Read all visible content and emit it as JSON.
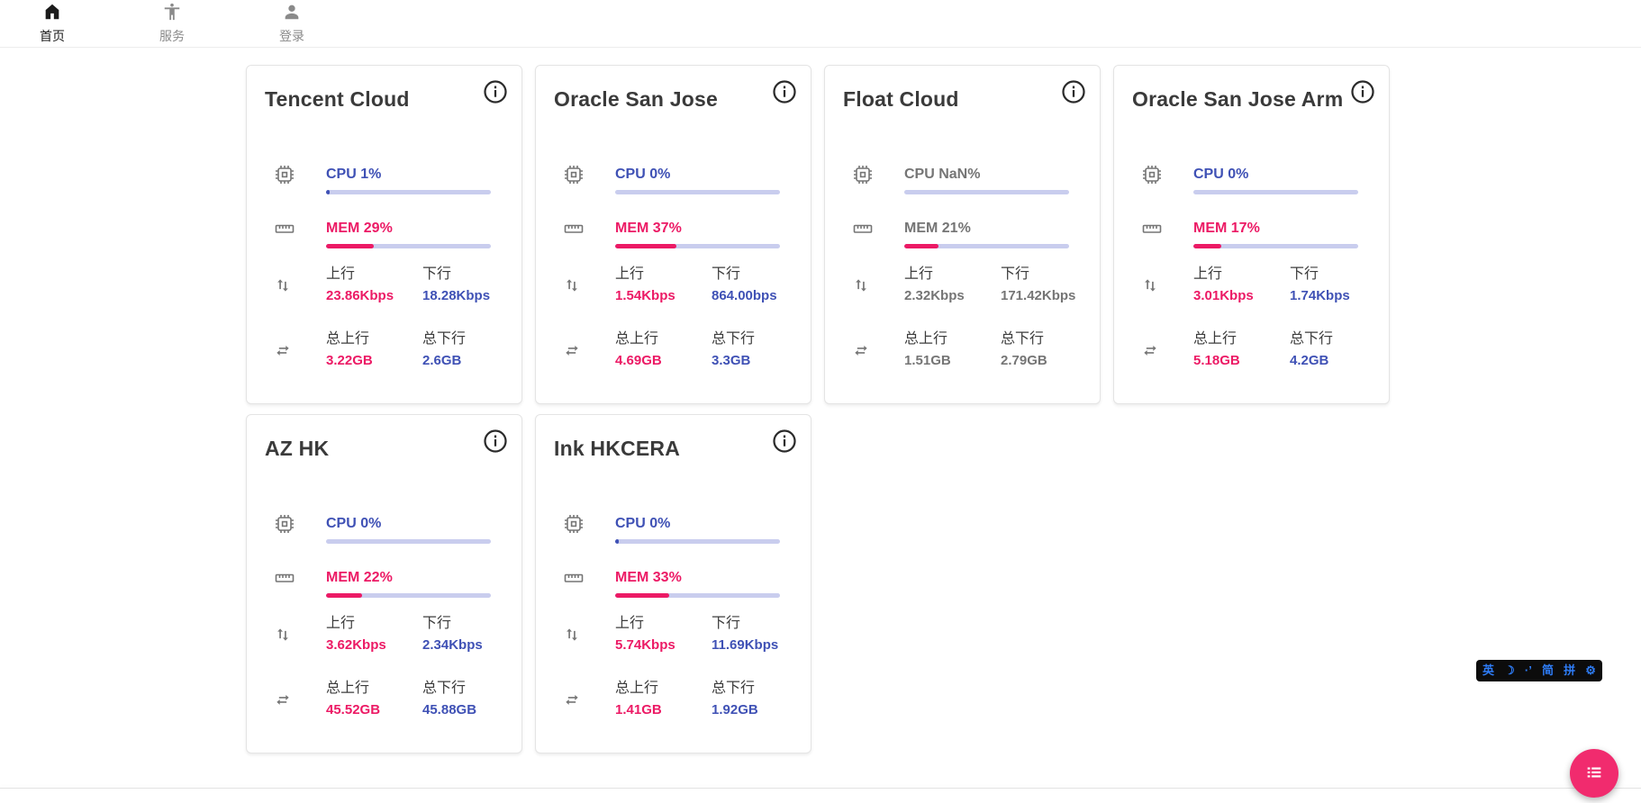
{
  "nav": {
    "home": "首页",
    "services": "服务",
    "login": "登录"
  },
  "labels": {
    "up": "上行",
    "down": "下行",
    "total_up": "总上行",
    "total_down": "总下行"
  },
  "colors": {
    "accent_blue": "#3f51b5",
    "accent_pink": "#ec1a65",
    "bar_track": "#c9cdee",
    "muted_gray": "#757575",
    "fab_pink": "#f12b6e",
    "ime_blue": "#2e7cf6"
  },
  "cards": [
    {
      "name": "Tencent Cloud",
      "cpu": "CPU 1%",
      "cpu_bar": 2,
      "mem": "MEM 29%",
      "mem_bar": 29,
      "up": "23.86Kbps",
      "down": "18.28Kbps",
      "total_up": "3.22GB",
      "total_down": "2.6GB",
      "muted": false
    },
    {
      "name": "Oracle San Jose",
      "cpu": "CPU 0%",
      "cpu_bar": 0,
      "mem": "MEM 37%",
      "mem_bar": 37,
      "up": "1.54Kbps",
      "down": "864.00bps",
      "total_up": "4.69GB",
      "total_down": "3.3GB",
      "muted": false
    },
    {
      "name": "Float Cloud",
      "cpu": "CPU NaN%",
      "cpu_bar": 0,
      "mem": "MEM 21%",
      "mem_bar": 21,
      "up": "2.32Kbps",
      "down": "171.42Kbps",
      "total_up": "1.51GB",
      "total_down": "2.79GB",
      "muted": true
    },
    {
      "name": "Oracle San Jose Arm",
      "cpu": "CPU 0%",
      "cpu_bar": 0,
      "mem": "MEM 17%",
      "mem_bar": 17,
      "up": "3.01Kbps",
      "down": "1.74Kbps",
      "total_up": "5.18GB",
      "total_down": "4.2GB",
      "muted": false
    },
    {
      "name": "AZ HK",
      "cpu": "CPU 0%",
      "cpu_bar": 0,
      "mem": "MEM 22%",
      "mem_bar": 22,
      "up": "3.62Kbps",
      "down": "2.34Kbps",
      "total_up": "45.52GB",
      "total_down": "45.88GB",
      "muted": false
    },
    {
      "name": "Ink HKCERA",
      "cpu": "CPU 0%",
      "cpu_bar": 2,
      "mem": "MEM 33%",
      "mem_bar": 33,
      "up": "5.74Kbps",
      "down": "11.69Kbps",
      "total_up": "1.41GB",
      "total_down": "1.92GB",
      "muted": false
    }
  ],
  "ime": {
    "items": [
      "英",
      "☽",
      "·’",
      "简",
      "拼",
      "⚙"
    ]
  }
}
